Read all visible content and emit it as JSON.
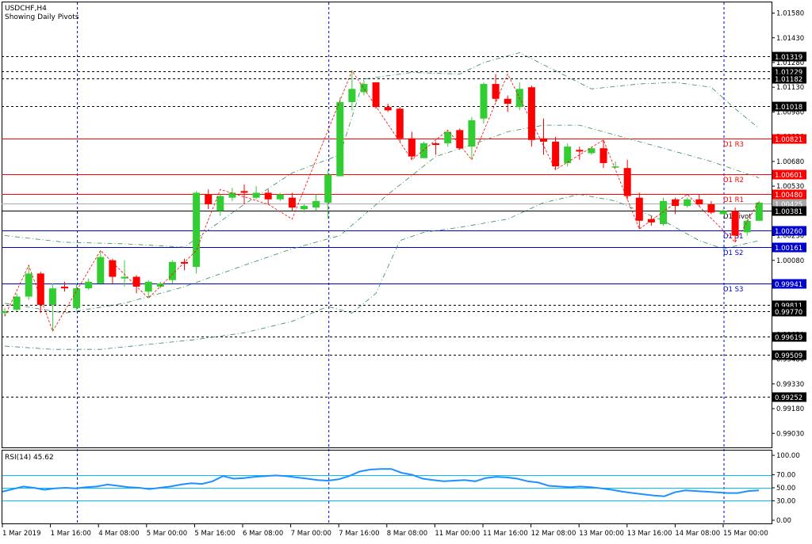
{
  "header": {
    "symbol_line": "USDCHF,H4",
    "subtitle": "Showing Daily Pivots"
  },
  "colors": {
    "background": "#ffffff",
    "frame": "#000000",
    "bull": "#32cd32",
    "bear": "#ff0000",
    "pivot_resistance": "#ff0000",
    "pivot_support": "#0000cd",
    "pivot_main": "#000000",
    "bollinger": "#2e8b57",
    "zigzag": "#ff0000",
    "rsi_line": "#1e90ff",
    "rsi_levels": "#00bfff",
    "gray_level": "#a9a9a9"
  },
  "chart_data": [
    {
      "type": "candlestick",
      "title": "USDCHF,H4",
      "subtitle": "Showing Daily Pivots",
      "ylim": [
        0.98945,
        1.01645
      ],
      "y_ticks": [
        "1.01580",
        "1.01430",
        "1.01280",
        "1.01130",
        "1.00980",
        "1.00830",
        "1.00680",
        "1.00530",
        "1.00380",
        "1.00230",
        "1.00080",
        "0.99930",
        "0.99780",
        "0.99630",
        "0.99480",
        "0.99330",
        "0.99180",
        "0.99030"
      ],
      "x_labels": [
        "1 Mar 2019",
        "1 Mar 16:00",
        "4 Mar 08:00",
        "5 Mar 00:00",
        "5 Mar 16:00",
        "6 Mar 08:00",
        "7 Mar 00:00",
        "7 Mar 16:00",
        "8 Mar 08:00",
        "11 Mar 00:00",
        "11 Mar 16:00",
        "12 Mar 08:00",
        "13 Mar 00:00",
        "13 Mar 16:00",
        "14 Mar 08:00",
        "15 Mar 00:00"
      ],
      "candles": [
        {
          "o": 0.9976,
          "h": 0.9979,
          "l": 0.9974,
          "c": 0.9977
        },
        {
          "o": 0.9978,
          "h": 0.9988,
          "l": 0.9977,
          "c": 0.9986
        },
        {
          "o": 0.9986,
          "h": 1.0005,
          "l": 0.9984,
          "c": 1.0
        },
        {
          "o": 1.0,
          "h": 1.0001,
          "l": 0.9976,
          "c": 0.9981
        },
        {
          "o": 0.9981,
          "h": 0.9994,
          "l": 0.9965,
          "c": 0.9991
        },
        {
          "o": 0.9992,
          "h": 0.9995,
          "l": 0.9989,
          "c": 0.9991
        },
        {
          "o": 0.9979,
          "h": 0.9994,
          "l": 0.9978,
          "c": 0.9991
        },
        {
          "o": 0.9991,
          "h": 0.9997,
          "l": 0.999,
          "c": 0.9995
        },
        {
          "o": 0.9994,
          "h": 1.0014,
          "l": 0.9993,
          "c": 1.001
        },
        {
          "o": 1.0008,
          "h": 1.0009,
          "l": 0.9994,
          "c": 0.9998
        },
        {
          "o": 0.9997,
          "h": 1.0008,
          "l": 0.9992,
          "c": 0.9998
        },
        {
          "o": 0.9998,
          "h": 0.9999,
          "l": 0.9988,
          "c": 0.9992
        },
        {
          "o": 0.9989,
          "h": 0.9996,
          "l": 0.9985,
          "c": 0.9995
        },
        {
          "o": 0.9992,
          "h": 0.9995,
          "l": 0.9991,
          "c": 0.9994
        },
        {
          "o": 0.9996,
          "h": 1.0008,
          "l": 0.9994,
          "c": 1.0007
        },
        {
          "o": 1.0007,
          "h": 1.0009,
          "l": 1.0002,
          "c": 1.0006
        },
        {
          "o": 1.0004,
          "h": 1.005,
          "l": 1.0,
          "c": 1.0049
        },
        {
          "o": 1.0048,
          "h": 1.0051,
          "l": 1.0039,
          "c": 1.0042
        },
        {
          "o": 1.0038,
          "h": 1.0048,
          "l": 1.0035,
          "c": 1.0047
        },
        {
          "o": 1.0046,
          "h": 1.0052,
          "l": 1.0044,
          "c": 1.0049
        },
        {
          "o": 1.005,
          "h": 1.0054,
          "l": 1.0042,
          "c": 1.0049
        },
        {
          "o": 1.0046,
          "h": 1.0053,
          "l": 1.0045,
          "c": 1.0049
        },
        {
          "o": 1.0049,
          "h": 1.0051,
          "l": 1.0042,
          "c": 1.0045
        },
        {
          "o": 1.0045,
          "h": 1.0049,
          "l": 1.0044,
          "c": 1.0048
        },
        {
          "o": 1.0046,
          "h": 1.0049,
          "l": 1.0038,
          "c": 1.004
        },
        {
          "o": 1.0039,
          "h": 1.0042,
          "l": 1.0037,
          "c": 1.0041
        },
        {
          "o": 1.004,
          "h": 1.0048,
          "l": 1.0038,
          "c": 1.0044
        },
        {
          "o": 1.0043,
          "h": 1.0063,
          "l": 1.0033,
          "c": 1.006
        },
        {
          "o": 1.0059,
          "h": 1.0107,
          "l": 1.0059,
          "c": 1.0104
        },
        {
          "o": 1.0104,
          "h": 1.0123,
          "l": 1.0099,
          "c": 1.0112
        },
        {
          "o": 1.011,
          "h": 1.0117,
          "l": 1.0108,
          "c": 1.0115
        },
        {
          "o": 1.0116,
          "h": 1.0116,
          "l": 1.01,
          "c": 1.0101
        },
        {
          "o": 1.0101,
          "h": 1.0103,
          "l": 1.0098,
          "c": 1.0099
        },
        {
          "o": 1.01,
          "h": 1.0101,
          "l": 1.008,
          "c": 1.0082
        },
        {
          "o": 1.0082,
          "h": 1.0086,
          "l": 1.0069,
          "c": 1.0071
        },
        {
          "o": 1.007,
          "h": 1.008,
          "l": 1.007,
          "c": 1.0079
        },
        {
          "o": 1.0079,
          "h": 1.008,
          "l": 1.0072,
          "c": 1.0078
        },
        {
          "o": 1.0079,
          "h": 1.0087,
          "l": 1.0077,
          "c": 1.0086
        },
        {
          "o": 1.0087,
          "h": 1.0088,
          "l": 1.0075,
          "c": 1.0076
        },
        {
          "o": 1.0077,
          "h": 1.0095,
          "l": 1.0069,
          "c": 1.0093
        },
        {
          "o": 1.0094,
          "h": 1.0116,
          "l": 1.0091,
          "c": 1.0115
        },
        {
          "o": 1.0115,
          "h": 1.0121,
          "l": 1.0104,
          "c": 1.0106
        },
        {
          "o": 1.0106,
          "h": 1.0108,
          "l": 1.0098,
          "c": 1.0103
        },
        {
          "o": 1.0101,
          "h": 1.0116,
          "l": 1.0099,
          "c": 1.0112
        },
        {
          "o": 1.0113,
          "h": 1.0114,
          "l": 1.0077,
          "c": 1.0081
        },
        {
          "o": 1.0082,
          "h": 1.0094,
          "l": 1.0072,
          "c": 1.008
        },
        {
          "o": 1.008,
          "h": 1.0083,
          "l": 1.0063,
          "c": 1.0065
        },
        {
          "o": 1.0067,
          "h": 1.0079,
          "l": 1.0065,
          "c": 1.0077
        },
        {
          "o": 1.0075,
          "h": 1.0077,
          "l": 1.0069,
          "c": 1.0074
        },
        {
          "o": 1.0073,
          "h": 1.0077,
          "l": 1.0072,
          "c": 1.0076
        },
        {
          "o": 1.0076,
          "h": 1.0081,
          "l": 1.0064,
          "c": 1.0067
        },
        {
          "o": 1.0065,
          "h": 1.0068,
          "l": 1.0064,
          "c": 1.0065
        },
        {
          "o": 1.0064,
          "h": 1.0069,
          "l": 1.0045,
          "c": 1.0047
        },
        {
          "o": 1.0046,
          "h": 1.0049,
          "l": 1.0027,
          "c": 1.0032
        },
        {
          "o": 1.0033,
          "h": 1.0035,
          "l": 1.0029,
          "c": 1.0031
        },
        {
          "o": 1.003,
          "h": 1.0046,
          "l": 1.0029,
          "c": 1.0044
        },
        {
          "o": 1.0045,
          "h": 1.0046,
          "l": 1.0036,
          "c": 1.0041
        },
        {
          "o": 1.0041,
          "h": 1.0046,
          "l": 1.004,
          "c": 1.0045
        },
        {
          "o": 1.0045,
          "h": 1.0048,
          "l": 1.0041,
          "c": 1.0042
        },
        {
          "o": 1.0042,
          "h": 1.0044,
          "l": 1.0036,
          "c": 1.0037
        },
        {
          "o": 1.0036,
          "h": 1.0039,
          "l": 1.0037,
          "c": 1.0038
        },
        {
          "o": 1.0038,
          "h": 1.004,
          "l": 1.0019,
          "c": 1.0023
        },
        {
          "o": 1.0025,
          "h": 1.0033,
          "l": 1.0023,
          "c": 1.0032
        },
        {
          "o": 1.0032,
          "h": 1.0044,
          "l": 1.0032,
          "c": 1.0043
        }
      ],
      "pivot_lines": [
        {
          "value": 1.00821,
          "label": "D1 R3",
          "price_label": "1.00821",
          "kind": "resistance"
        },
        {
          "value": 1.00601,
          "label": "D1 R2",
          "price_label": "1.00601",
          "kind": "resistance"
        },
        {
          "value": 1.0048,
          "label": "D1 R1",
          "price_label": "1.00480",
          "kind": "resistance"
        },
        {
          "value": 1.00381,
          "label": "D1 Pivot",
          "price_label": "1.00381",
          "kind": "pivot"
        },
        {
          "value": 1.0026,
          "label": "D1 S1",
          "price_label": "1.00260",
          "kind": "support"
        },
        {
          "value": 1.00161,
          "label": "D1 S2",
          "price_label": "1.00161",
          "kind": "support"
        },
        {
          "value": 0.99941,
          "label": "D1 S3",
          "price_label": "0.99941",
          "kind": "support"
        }
      ],
      "horizontal_levels": [
        {
          "value": 1.01319,
          "price_label": "1.01319"
        },
        {
          "value": 1.01229,
          "price_label": "1.01229"
        },
        {
          "value": 1.01182,
          "price_label": "1.01182"
        },
        {
          "value": 1.01018,
          "price_label": "1.01018"
        },
        {
          "value": 0.99811,
          "price_label": "0.99811"
        },
        {
          "value": 0.9977,
          "price_label": "0.99770"
        },
        {
          "value": 0.99619,
          "price_label": "0.99619"
        },
        {
          "value": 0.99509,
          "price_label": "0.99509"
        },
        {
          "value": 0.99252,
          "price_label": "0.99252"
        }
      ],
      "current_price": {
        "value": 1.00425,
        "price_label": "1.00425"
      },
      "bollinger_upper": [
        [
          0,
          1.0023
        ],
        [
          5,
          1.0019
        ],
        [
          10,
          1.0018
        ],
        [
          15,
          1.0016
        ],
        [
          20,
          1.0042
        ],
        [
          24,
          1.0061
        ],
        [
          28,
          1.0072
        ],
        [
          30,
          1.0118
        ],
        [
          34,
          1.0122
        ],
        [
          38,
          1.0121
        ],
        [
          40,
          1.0128
        ],
        [
          43,
          1.0134
        ],
        [
          46,
          1.0123
        ],
        [
          49,
          1.0112
        ],
        [
          53,
          1.0115
        ],
        [
          56,
          1.0116
        ],
        [
          59,
          1.0113
        ],
        [
          61,
          1.01
        ],
        [
          63,
          1.0088
        ]
      ],
      "bollinger_middle": [
        [
          0,
          0.9982
        ],
        [
          5,
          0.9976
        ],
        [
          10,
          0.9982
        ],
        [
          15,
          0.9992
        ],
        [
          20,
          1.0005
        ],
        [
          24,
          1.0015
        ],
        [
          28,
          1.0023
        ],
        [
          32,
          1.0048
        ],
        [
          36,
          1.0071
        ],
        [
          39,
          1.0078
        ],
        [
          42,
          1.0086
        ],
        [
          45,
          1.009
        ],
        [
          48,
          1.009
        ],
        [
          51,
          1.0084
        ],
        [
          55,
          1.0076
        ],
        [
          59,
          1.0068
        ],
        [
          63,
          1.0058
        ]
      ],
      "bollinger_lower": [
        [
          0,
          0.9956
        ],
        [
          4,
          0.9954
        ],
        [
          8,
          0.9954
        ],
        [
          12,
          0.9957
        ],
        [
          16,
          0.996
        ],
        [
          20,
          0.9964
        ],
        [
          24,
          0.9971
        ],
        [
          27,
          0.998
        ],
        [
          29,
          0.9976
        ],
        [
          31,
          0.9988
        ],
        [
          33,
          1.002
        ],
        [
          35,
          1.0025
        ],
        [
          38,
          1.0028
        ],
        [
          42,
          1.0033
        ],
        [
          45,
          1.0043
        ],
        [
          48,
          1.0048
        ],
        [
          51,
          1.0044
        ],
        [
          55,
          1.0032
        ],
        [
          58,
          1.002
        ],
        [
          60,
          1.0015
        ],
        [
          63,
          1.002
        ]
      ],
      "zigzag": [
        [
          0,
          0.9974
        ],
        [
          2,
          1.0005
        ],
        [
          4,
          0.9965
        ],
        [
          8,
          1.0014
        ],
        [
          12,
          0.9985
        ],
        [
          16,
          1.0014
        ],
        [
          18,
          1.0051
        ],
        [
          22,
          1.0042
        ],
        [
          24,
          1.0033
        ],
        [
          29,
          1.0123
        ],
        [
          34,
          1.0069
        ],
        [
          37,
          1.0087
        ],
        [
          39,
          1.0069
        ],
        [
          42,
          1.0121
        ],
        [
          46,
          1.0063
        ],
        [
          50,
          1.0081
        ],
        [
          53,
          1.0027
        ],
        [
          57,
          1.0048
        ],
        [
          61,
          1.0019
        ],
        [
          63,
          1.0044
        ]
      ],
      "vertical_separators": [
        6,
        27,
        60
      ],
      "grid": false,
      "legend": "none"
    },
    {
      "type": "line",
      "title": "RSI(14) 45.62",
      "ylim": [
        0,
        100
      ],
      "y_ticks": [
        "100.00",
        "70.00",
        "50.00",
        "30.00",
        "0.00"
      ],
      "levels": [
        70,
        50,
        30
      ],
      "series": [
        {
          "name": "RSI(14)",
          "values": [
            44,
            48,
            52,
            50,
            47,
            49,
            50,
            49,
            51,
            52,
            55,
            53,
            51,
            50,
            48,
            50,
            52,
            55,
            57,
            56,
            60,
            68,
            64,
            65,
            67,
            68,
            69,
            68,
            66,
            64,
            62,
            61,
            63,
            68,
            75,
            78,
            79,
            79,
            73,
            70,
            64,
            62,
            60,
            61,
            62,
            60,
            65,
            67,
            66,
            64,
            60,
            58,
            53,
            52,
            51,
            52,
            51,
            49,
            47,
            44,
            42,
            40,
            38,
            37,
            43,
            46,
            45,
            44,
            43,
            42,
            42,
            45,
            46
          ]
        }
      ]
    }
  ]
}
